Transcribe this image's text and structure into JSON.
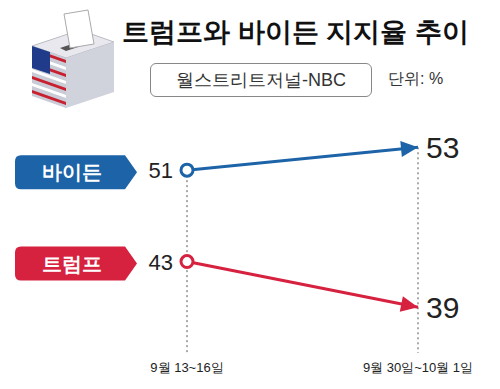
{
  "chart_data": {
    "type": "line",
    "title": "트럼프와 바이든 지지율 추이",
    "subtitle": "월스트리트저널-NBC",
    "y_label": "단위: %",
    "categories": [
      "9월 13~16일",
      "9월 30일~10월 1일"
    ],
    "series": [
      {
        "name": "바이든",
        "color": "#1c63a8",
        "values": [
          51,
          53
        ]
      },
      {
        "name": "트럼프",
        "color": "#d6213f",
        "values": [
          43,
          39
        ]
      }
    ],
    "ylim": [
      35,
      56
    ],
    "marker": "circle",
    "data_labels": true,
    "tick_labels": "x"
  }
}
